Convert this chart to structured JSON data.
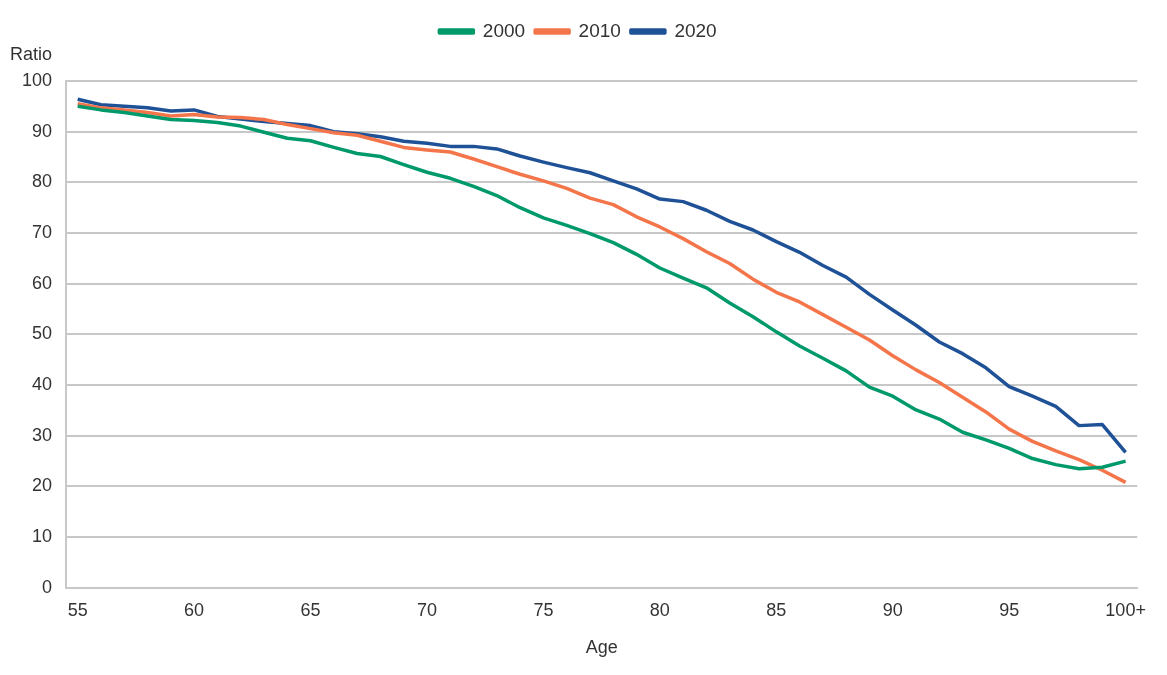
{
  "chart_data": {
    "type": "line",
    "xlabel": "Age",
    "ylabel": "Ratio",
    "categories": [
      "55",
      null,
      null,
      null,
      null,
      "60",
      null,
      null,
      null,
      null,
      "65",
      null,
      null,
      null,
      null,
      "70",
      null,
      null,
      null,
      null,
      "75",
      null,
      null,
      null,
      null,
      "80",
      null,
      null,
      null,
      null,
      "85",
      null,
      null,
      null,
      null,
      "90",
      null,
      null,
      null,
      null,
      "95",
      null,
      null,
      null,
      null,
      "100+"
    ],
    "series": [
      {
        "name": "2000",
        "color": "#00996b",
        "values": [
          95,
          94.3,
          93.8,
          93.1,
          92.4,
          92.2,
          91.8,
          91.1,
          89.9,
          88.7,
          88.2,
          86.9,
          85.7,
          85.1,
          83.5,
          82,
          80.8,
          79.2,
          77.4,
          75,
          73,
          71.5,
          69.9,
          68.1,
          65.8,
          63.1,
          61.1,
          59.2,
          56.2,
          53.5,
          50.5,
          47.7,
          45.3,
          42.8,
          39.6,
          37.8,
          35.1,
          33.3,
          30.7,
          29.2,
          27.5,
          25.5,
          24.3,
          23.5,
          23.8,
          25
        ]
      },
      {
        "name": "2010",
        "color": "#f4754a",
        "values": [
          95.5,
          94.7,
          94.3,
          93.8,
          93.1,
          93.4,
          92.9,
          92.8,
          92.4,
          91.4,
          90.6,
          89.8,
          89.3,
          88.1,
          86.9,
          86.4,
          86,
          84.6,
          83.1,
          81.6,
          80.3,
          78.8,
          76.9,
          75.6,
          73.2,
          71.2,
          68.9,
          66.3,
          64,
          60.9,
          58.3,
          56.4,
          53.9,
          51.4,
          48.9,
          45.8,
          43,
          40.5,
          37.6,
          34.7,
          31.3,
          28.9,
          27,
          25.3,
          23.2,
          20.8
        ]
      },
      {
        "name": "2020",
        "color": "#1f5197",
        "values": [
          96.4,
          95.3,
          95,
          94.7,
          94.1,
          94.3,
          93,
          92.5,
          92,
          91.6,
          91.2,
          90,
          89.6,
          89,
          88.1,
          87.7,
          87.1,
          87.1,
          86.6,
          85.2,
          84,
          82.9,
          81.9,
          80.3,
          78.7,
          76.7,
          76.2,
          74.5,
          72.3,
          70.6,
          68.3,
          66.2,
          63.6,
          61.3,
          57.9,
          54.8,
          51.8,
          48.5,
          46.2,
          43.4,
          39.7,
          37.8,
          35.8,
          32,
          32.2,
          26.7
        ]
      }
    ],
    "ylim": [
      0,
      100
    ],
    "yticks": [
      0,
      10,
      20,
      30,
      40,
      50,
      60,
      70,
      80,
      90,
      100
    ],
    "grid": "y",
    "legend": "top",
    "marker": "none",
    "line_style": "solid"
  }
}
